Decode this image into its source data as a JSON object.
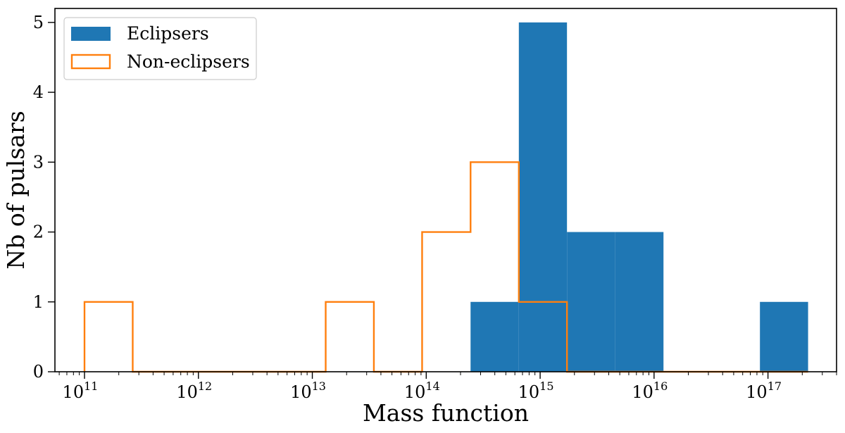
{
  "chart_data": {
    "type": "bar",
    "title": "",
    "xlabel": "Mass function",
    "ylabel": "Nb of pulsars",
    "xscale": "log",
    "xlim": [
      55000000000.0,
      4e+17
    ],
    "ylim": [
      0,
      5.2
    ],
    "legend_position": "top-left",
    "x_tick_exponents": [
      11,
      12,
      13,
      14,
      15,
      16,
      17
    ],
    "x_tick_base": "10",
    "y_ticks": [
      0,
      1,
      2,
      3,
      4,
      5
    ],
    "bin_edges": [
      100000000000.0,
      265000000000.0,
      700000000000.0,
      1860000000000.0,
      4930000000000.0,
      13100000000000.0,
      34700000000000.0,
      92000000000000.0,
      245000000000000.0,
      650000000000000.0,
      1720000000000000.0,
      4560000000000000.0,
      1.21e+16,
      3.2e+16,
      8.5e+16,
      2.25e+17
    ],
    "series": [
      {
        "name": "Eclipsers",
        "style": "filled",
        "color": "#1f77b4",
        "values": [
          0,
          0,
          0,
          0,
          0,
          0,
          0,
          0,
          1,
          5,
          2,
          2,
          0,
          0,
          1
        ]
      },
      {
        "name": "Non-eclipsers",
        "style": "step",
        "color": "#ff7f0e",
        "values": [
          1,
          0,
          0,
          0,
          0,
          1,
          0,
          2,
          3,
          1,
          0,
          0,
          0,
          0,
          0
        ]
      }
    ]
  }
}
